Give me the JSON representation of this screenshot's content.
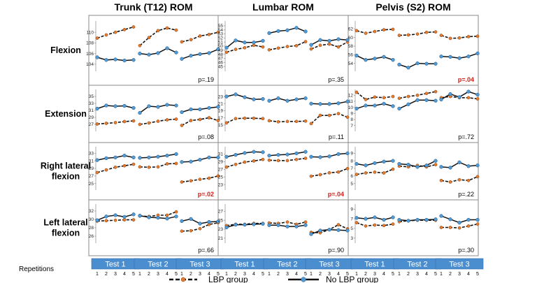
{
  "chart_data": {
    "type": "line",
    "columns": [
      "Trunk (T12) ROM",
      "Lumbar ROM",
      "Pelvis (S2) ROM"
    ],
    "rows": [
      "Flexion",
      "Extension",
      "Right lateral\nflexion",
      "Left lateral\nflexion"
    ],
    "tests": [
      "Test 1",
      "Test 2",
      "Test 3"
    ],
    "repetitions": [
      1,
      2,
      3,
      4,
      5
    ],
    "repetitions_label": "Repetitions",
    "series_names": [
      "LBP group",
      "No LBP group"
    ],
    "colors": {
      "lbp": "#e87a2a",
      "nolbp": "#4f9bd6",
      "test_box": "#4a8ed0",
      "significant": "#d0201a"
    },
    "panels": [
      [
        {
          "ticks": [
            104,
            106,
            108,
            110
          ],
          "ylim": [
            103.2,
            111.6
          ],
          "p": "p=.19",
          "sig": false,
          "lbp": [
            [
              108.9,
              109.5,
              110.0,
              110.5,
              111.0
            ],
            [
              107.5,
              109.0,
              110.3,
              110.8,
              110.4
            ],
            [
              108.2,
              108.6,
              109.3,
              109.6,
              110.0
            ]
          ],
          "nolbp": [
            [
              105.3,
              104.8,
              104.9,
              104.7,
              104.8
            ],
            [
              106.0,
              105.8,
              106.1,
              107.0,
              106.2
            ],
            [
              105.0,
              105.6,
              105.9,
              106.1,
              106.8
            ]
          ]
        },
        {
          "ticks": [
            45,
            46,
            47,
            48,
            49,
            50,
            51,
            52,
            53,
            54,
            55
          ],
          "ylim": [
            44.5,
            55.5
          ],
          "p": "p=.35",
          "sig": false,
          "lbp": [
            [
              48.5,
              49.2,
              49.6,
              50.2,
              49.8
            ],
            [
              49.1,
              49.5,
              49.9,
              50.1,
              51.1
            ],
            [
              49.3,
              50.2,
              50.5,
              49.8,
              51.0
            ]
          ],
          "nolbp": [
            [
              49.6,
              51.4,
              50.9,
              50.9,
              51.3
            ],
            [
              53.2,
              53.7,
              53.9,
              54.5,
              53.6
            ],
            [
              50.3,
              51.5,
              51.3,
              51.7,
              51.5
            ]
          ]
        },
        {
          "ticks": [
            54,
            56,
            58,
            60,
            62
          ],
          "ylim": [
            52.8,
            63.2
          ],
          "p": "p=.04",
          "sig": true,
          "lbp": [
            [
              61.6,
              61.0,
              61.4,
              61.8,
              61.9
            ],
            [
              60.5,
              60.6,
              60.8,
              61.2,
              61.3
            ],
            [
              60.5,
              59.8,
              59.9,
              60.2,
              60.3
            ]
          ],
          "nolbp": [
            [
              55.8,
              54.8,
              55.1,
              55.5,
              54.8
            ],
            [
              53.7,
              53.0,
              54.0,
              53.9,
              53.9
            ],
            [
              55.6,
              55.5,
              55.2,
              55.6,
              56.3
            ]
          ]
        }
      ],
      [
        {
          "ticks": [
            27,
            29,
            31,
            33,
            35
          ],
          "ylim": [
            25.8,
            36.2
          ],
          "p": "p=.08",
          "sig": false,
          "lbp": [
            [
              27.1,
              27.3,
              27.5,
              27.8,
              28.0
            ],
            [
              27.0,
              27.4,
              27.9,
              28.3,
              28.5
            ],
            [
              26.7,
              28.1,
              28.4,
              28.9,
              28.1
            ]
          ],
          "nolbp": [
            [
              31.5,
              32.4,
              32.2,
              32.3,
              31.7
            ],
            [
              30.3,
              32.2,
              32.0,
              32.6,
              32.4
            ],
            [
              30.5,
              31.3,
              31.3,
              31.7,
              32.0
            ]
          ]
        },
        {
          "ticks": [
            15,
            17,
            19,
            21,
            23
          ],
          "ylim": [
            14.0,
            24.2
          ],
          "p": "p=.11",
          "sig": false,
          "lbp": [
            [
              15.6,
              16.8,
              16.9,
              16.9,
              16.8
            ],
            [
              16.2,
              15.9,
              16.0,
              16.0,
              16.1
            ],
            [
              15.4,
              17.7,
              17.7,
              18.2,
              17.2
            ]
          ],
          "nolbp": [
            [
              23.0,
              23.6,
              22.8,
              22.2,
              22.3
            ],
            [
              21.8,
              22.5,
              21.8,
              22.2,
              22.5
            ],
            [
              21.0,
              20.9,
              20.9,
              21.1,
              21.6
            ]
          ]
        },
        {
          "ticks": [
            7,
            8,
            9,
            10,
            11,
            12
          ],
          "ylim": [
            6.5,
            12.5
          ],
          "p": "p=.72",
          "sig": false,
          "lbp": [
            [
              12.5,
              11.3,
              11.7,
              11.6,
              11.8
            ],
            [
              11.5,
              11.8,
              12.0,
              12.3,
              12.6
            ],
            [
              11.6,
              11.8,
              11.6,
              11.6,
              11.4
            ]
          ],
          "nolbp": [
            [
              9.8,
              10.3,
              10.3,
              10.6,
              10.2
            ],
            [
              9.8,
              10.5,
              11.2,
              11.2,
              11.1
            ],
            [
              11.3,
              12.2,
              11.7,
              12.6,
              12.1
            ]
          ]
        }
      ],
      [
        {
          "ticks": [
            25,
            27,
            29,
            31,
            33
          ],
          "ylim": [
            24.0,
            34.0
          ],
          "p": "p=.02",
          "sig": true,
          "lbp": [
            [
              27.9,
              28.6,
              29.3,
              29.7,
              30.1
            ],
            [
              29.4,
              29.3,
              29.4,
              30.2,
              30.3
            ],
            [
              25.4,
              25.7,
              26.1,
              26.4,
              27.0
            ]
          ],
          "nolbp": [
            [
              31.2,
              31.7,
              31.9,
              32.4,
              31.9
            ],
            [
              31.8,
              31.9,
              32.1,
              32.4,
              32.8
            ],
            [
              30.7,
              30.8,
              31.3,
              31.9,
              31.9
            ]
          ]
        },
        {
          "ticks": [
            23,
            25,
            27,
            29,
            31
          ],
          "ylim": [
            22.3,
            32.2
          ],
          "p": "p=.04",
          "sig": true,
          "lbp": [
            [
              27.6,
              28.3,
              28.9,
              29.2,
              29.6
            ],
            [
              29.4,
              29.3,
              29.3,
              29.6,
              29.9
            ],
            [
              25.2,
              25.6,
              26.1,
              26.3,
              27.2
            ]
          ],
          "nolbp": [
            [
              30.3,
              30.8,
              31.3,
              31.6,
              31.5
            ],
            [
              30.6,
              30.8,
              30.9,
              31.2,
              31.6
            ],
            [
              30.3,
              30.2,
              30.4,
              31.0,
              31.2
            ]
          ]
        },
        {
          "ticks": [
            5,
            6,
            7,
            8,
            9
          ],
          "ylim": [
            4.5,
            9.5
          ],
          "p": "p=.22",
          "sig": false,
          "lbp": [
            [
              6.2,
              6.4,
              6.5,
              6.4,
              6.9
            ],
            [
              7.3,
              7.2,
              7.4,
              7.2,
              7.5
            ],
            [
              5.4,
              5.2,
              5.5,
              5.4,
              5.9
            ]
          ],
          "nolbp": [
            [
              7.6,
              7.4,
              7.7,
              7.9,
              8.0
            ],
            [
              7.6,
              7.5,
              7.2,
              7.4,
              8.0
            ],
            [
              7.2,
              7.1,
              7.8,
              7.3,
              7.4
            ]
          ]
        }
      ],
      [
        {
          "ticks": [
            26,
            28,
            30,
            32
          ],
          "ylim": [
            25.0,
            33.0
          ],
          "p": "p=.66",
          "sig": false,
          "lbp": [
            [
              29.6,
              29.7,
              29.8,
              29.9,
              29.9
            ],
            [
              30.8,
              30.7,
              31.0,
              31.0,
              31.8
            ],
            [
              27.2,
              27.3,
              27.8,
              28.8,
              29.2
            ]
          ],
          "nolbp": [
            [
              29.8,
              30.7,
              31.0,
              30.6,
              31.2
            ],
            [
              30.9,
              30.5,
              30.4,
              30.2,
              30.7
            ],
            [
              29.6,
              30.1,
              29.0,
              29.4,
              29.5
            ]
          ]
        },
        {
          "ticks": [
            21,
            23,
            25,
            27
          ],
          "ylim": [
            20.5,
            28.0
          ],
          "p": "p=.90",
          "sig": false,
          "lbp": [
            [
              23.8,
              24.1,
              24.1,
              24.3,
              24.3
            ],
            [
              24.4,
              24.3,
              24.6,
              24.1,
              24.6
            ],
            [
              22.3,
              22.2,
              22.9,
              24.0,
              23.1
            ]
          ],
          "nolbp": [
            [
              23.4,
              24.0,
              24.0,
              24.1,
              24.2
            ],
            [
              23.9,
              23.9,
              23.6,
              23.6,
              23.9
            ],
            [
              21.9,
              22.7,
              22.9,
              22.8,
              22.7
            ]
          ]
        },
        {
          "ticks": [
            3,
            5,
            7,
            9
          ],
          "ylim": [
            2.5,
            9.5
          ],
          "p": "p=.30",
          "sig": false,
          "lbp": [
            [
              6.2,
              5.5,
              5.7,
              5.6,
              5.9
            ],
            [
              6.4,
              6.6,
              6.7,
              6.7,
              6.7
            ],
            [
              5.2,
              5.2,
              5.1,
              5.5,
              5.9
            ]
          ],
          "nolbp": [
            [
              7.2,
              7.0,
              7.3,
              6.8,
              7.3
            ],
            [
              6.8,
              6.6,
              6.8,
              6.8,
              6.9
            ],
            [
              7.6,
              6.9,
              6.2,
              6.8,
              6.8
            ]
          ]
        }
      ]
    ]
  }
}
